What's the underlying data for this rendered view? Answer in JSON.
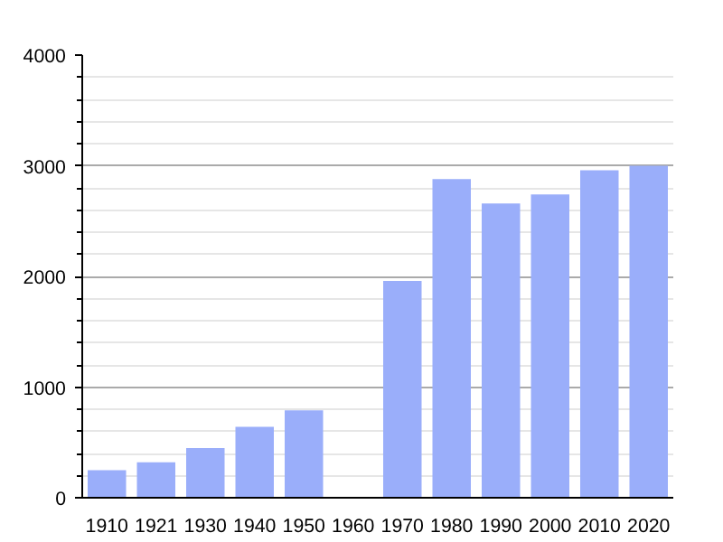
{
  "chart_data": {
    "type": "bar",
    "categories": [
      "1910",
      "1921",
      "1930",
      "1940",
      "1950",
      "1960",
      "1970",
      "1980",
      "1990",
      "2000",
      "2010",
      "2020"
    ],
    "values": [
      250,
      320,
      450,
      640,
      790,
      null,
      1960,
      2880,
      2660,
      2740,
      2960,
      3000
    ],
    "color": "#9aaefa",
    "ylim": [
      0,
      4000
    ],
    "yticks": [
      0,
      1000,
      2000,
      3000,
      4000
    ],
    "grid": "y"
  }
}
